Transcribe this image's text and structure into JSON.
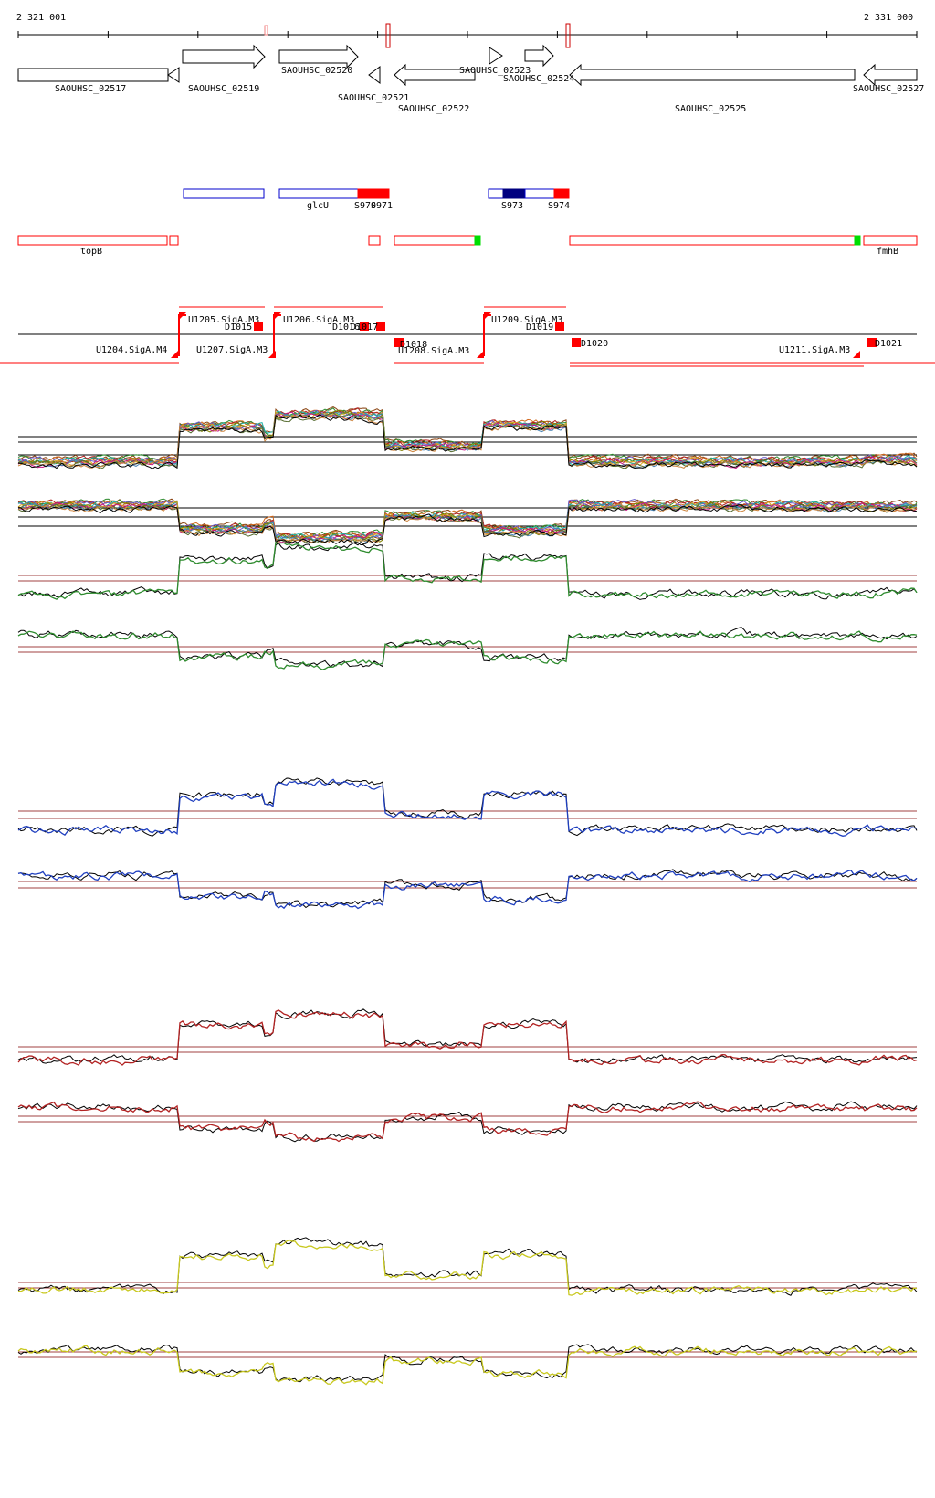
{
  "ruler": {
    "start_label": "2 321 001",
    "end_label": "2 331 000"
  },
  "genes": {
    "names": [
      "SAOUHSC_02517",
      "SAOUHSC_02519",
      "SAOUHSC_02520",
      "SAOUHSC_02521",
      "SAOUHSC_02522",
      "SAOUHSC_02523",
      "SAOUHSC_02524",
      "SAOUHSC_02525",
      "SAOUHSC_02527"
    ]
  },
  "blue_features": {
    "labels": [
      "glcU",
      "S970",
      "S971",
      "S973",
      "S974"
    ]
  },
  "red_features": {
    "labels": [
      "topB",
      "fmhB"
    ]
  },
  "promoters": {
    "labels": [
      "U1204.SigA.M4",
      "U1205.SigA.M3",
      "D1015",
      "U1206.SigA.M3",
      "D1016",
      "D1017",
      "U1207.SigA.M3",
      "D1018",
      "U1208.SigA.M3",
      "U1209.SigA.M3",
      "D1019",
      "D1020",
      "U1211.SigA.M3",
      "D1021"
    ]
  },
  "colors": {
    "gene_outline": "#000000",
    "blue_feature": "#0000cc",
    "navy_fill": "#000080",
    "red_feature": "#ff0000",
    "green_marker": "#00dd00",
    "threshold_line": "#a04040",
    "track_palette": [
      "#2e8b2e",
      "#1f3fbf",
      "#b22222",
      "#c8c81e"
    ]
  },
  "tracks": [
    {
      "name": "multi-top",
      "color": "multi"
    },
    {
      "name": "multi-bottom",
      "color": "multi"
    },
    {
      "name": "green-top",
      "color": "#2e8b2e"
    },
    {
      "name": "green-bottom",
      "color": "#2e8b2e"
    },
    {
      "name": "blue-top",
      "color": "#1f3fbf"
    },
    {
      "name": "blue-bottom",
      "color": "#1f3fbf"
    },
    {
      "name": "red-top",
      "color": "#b22222"
    },
    {
      "name": "red-bottom",
      "color": "#b22222"
    },
    {
      "name": "yellow-top",
      "color": "#c8c81e"
    },
    {
      "name": "yellow-bottom",
      "color": "#c8c81e"
    }
  ]
}
